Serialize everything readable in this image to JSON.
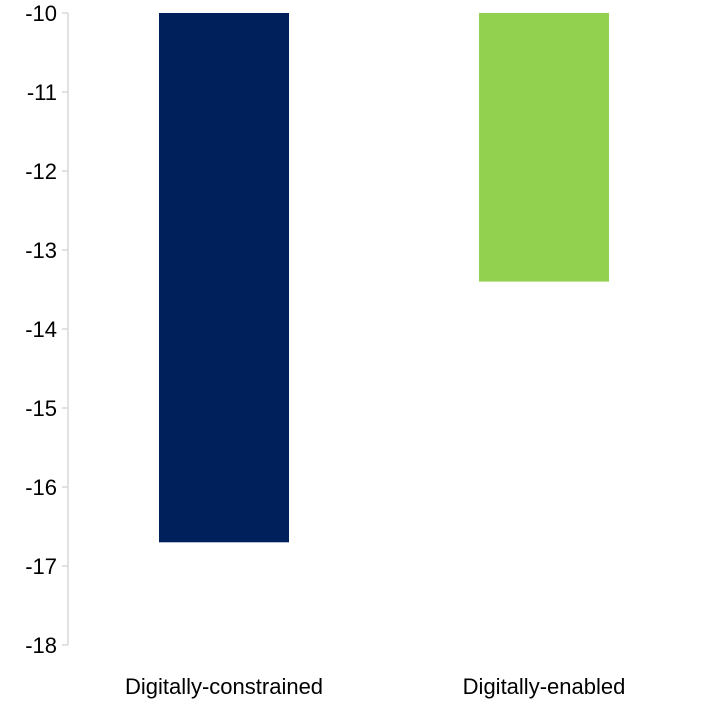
{
  "chart_data": {
    "type": "bar",
    "categories": [
      "Digitally-constrained",
      "Digitally-enabled"
    ],
    "values": [
      -16.7,
      -13.4
    ],
    "colors": [
      "#00205b",
      "#92d050"
    ],
    "ylim": [
      -18,
      -10
    ],
    "yticks": [
      "-10",
      "-11",
      "-12",
      "-13",
      "-14",
      "-15",
      "-16",
      "-17",
      "-18"
    ],
    "grid": false,
    "legend": "none",
    "title": "",
    "xlabel": "",
    "ylabel": ""
  }
}
